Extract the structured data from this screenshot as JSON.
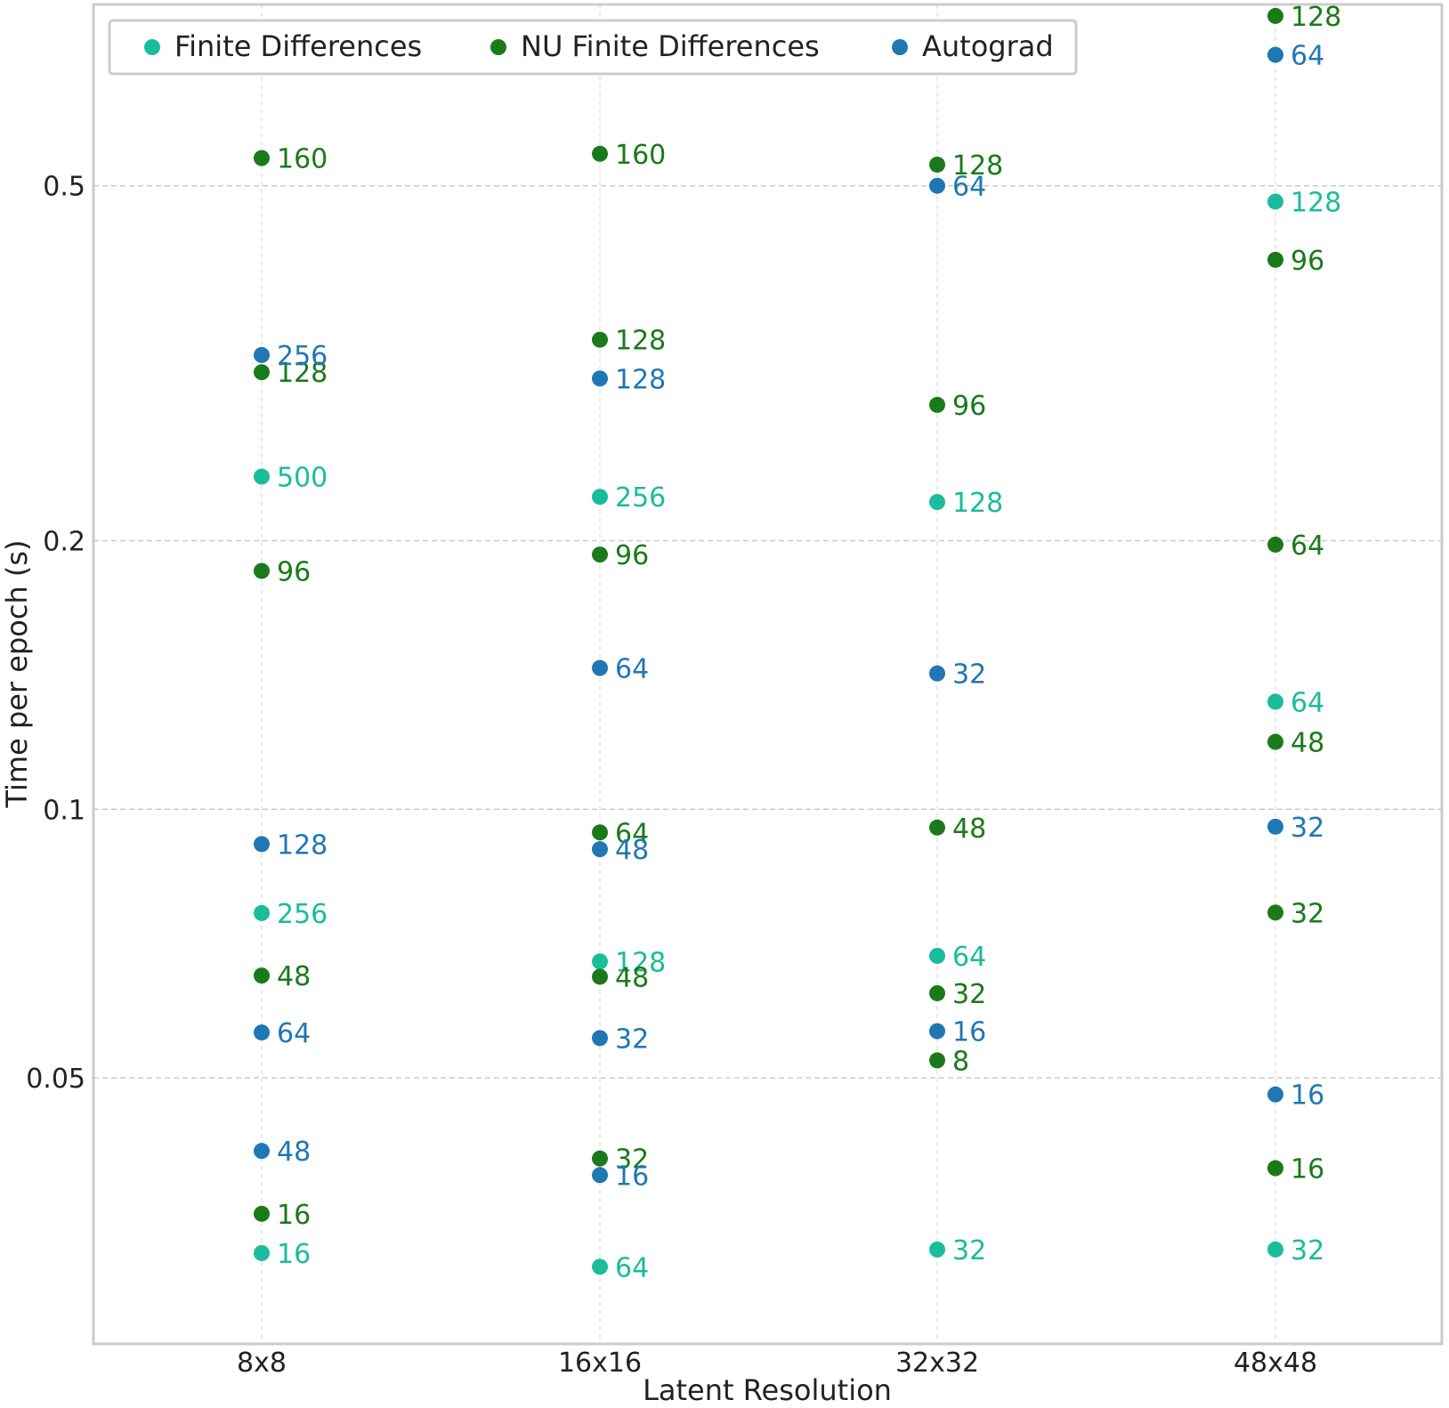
{
  "chart_data": {
    "type": "scatter",
    "title": "",
    "xlabel": "Latent Resolution",
    "ylabel": "Time per epoch (s)",
    "yscale": "log",
    "ylim": [
      0.0255,
      0.82
    ],
    "yticks": [
      0.05,
      0.1,
      0.2,
      0.5
    ],
    "ytick_labels": [
      "0.05",
      "0.1",
      "0.2",
      "0.5"
    ],
    "categories": [
      "8x8",
      "16x16",
      "32x32",
      "48x48"
    ],
    "grid": true,
    "legend_position": "top-left",
    "series": [
      {
        "name": "Finite Differences",
        "color": "#1abc9c",
        "points": [
          {
            "x": "8x8",
            "y": 0.236,
            "label": "500"
          },
          {
            "x": "8x8",
            "y": 0.0765,
            "label": "256"
          },
          {
            "x": "8x8",
            "y": 0.0318,
            "label": "16"
          },
          {
            "x": "16x16",
            "y": 0.224,
            "label": "256"
          },
          {
            "x": "16x16",
            "y": 0.0675,
            "label": "128"
          },
          {
            "x": "16x16",
            "y": 0.0307,
            "label": "64"
          },
          {
            "x": "32x32",
            "y": 0.221,
            "label": "128"
          },
          {
            "x": "32x32",
            "y": 0.0685,
            "label": "64"
          },
          {
            "x": "32x32",
            "y": 0.0321,
            "label": "32"
          },
          {
            "x": "48x48",
            "y": 0.48,
            "label": "128"
          },
          {
            "x": "48x48",
            "y": 0.132,
            "label": "64"
          },
          {
            "x": "48x48",
            "y": 0.0321,
            "label": "32"
          }
        ]
      },
      {
        "name": "NU Finite Differences",
        "color": "#1a7a1a",
        "points": [
          {
            "x": "8x8",
            "y": 0.537,
            "label": "160"
          },
          {
            "x": "8x8",
            "y": 0.309,
            "label": "128"
          },
          {
            "x": "8x8",
            "y": 0.185,
            "label": "96"
          },
          {
            "x": "8x8",
            "y": 0.0651,
            "label": "48"
          },
          {
            "x": "8x8",
            "y": 0.0352,
            "label": "16"
          },
          {
            "x": "16x16",
            "y": 0.543,
            "label": "160"
          },
          {
            "x": "16x16",
            "y": 0.336,
            "label": "128"
          },
          {
            "x": "16x16",
            "y": 0.193,
            "label": "96"
          },
          {
            "x": "16x16",
            "y": 0.0942,
            "label": "64"
          },
          {
            "x": "16x16",
            "y": 0.0649,
            "label": "48"
          },
          {
            "x": "16x16",
            "y": 0.0406,
            "label": "32"
          },
          {
            "x": "32x32",
            "y": 0.528,
            "label": "128"
          },
          {
            "x": "32x32",
            "y": 0.284,
            "label": "96"
          },
          {
            "x": "32x32",
            "y": 0.0954,
            "label": "48"
          },
          {
            "x": "32x32",
            "y": 0.0622,
            "label": "32"
          },
          {
            "x": "32x32",
            "y": 0.0523,
            "label": "8"
          },
          {
            "x": "48x48",
            "y": 0.775,
            "label": "128"
          },
          {
            "x": "48x48",
            "y": 0.413,
            "label": "96"
          },
          {
            "x": "48x48",
            "y": 0.198,
            "label": "64"
          },
          {
            "x": "48x48",
            "y": 0.119,
            "label": "48"
          },
          {
            "x": "48x48",
            "y": 0.0766,
            "label": "32"
          },
          {
            "x": "48x48",
            "y": 0.0396,
            "label": "16"
          }
        ]
      },
      {
        "name": "Autograd",
        "color": "#1f77b4",
        "points": [
          {
            "x": "8x8",
            "y": 0.323,
            "label": "256"
          },
          {
            "x": "8x8",
            "y": 0.0914,
            "label": "128"
          },
          {
            "x": "8x8",
            "y": 0.0562,
            "label": "64"
          },
          {
            "x": "8x8",
            "y": 0.0414,
            "label": "48"
          },
          {
            "x": "16x16",
            "y": 0.304,
            "label": "128"
          },
          {
            "x": "16x16",
            "y": 0.144,
            "label": "64"
          },
          {
            "x": "16x16",
            "y": 0.0902,
            "label": "48"
          },
          {
            "x": "16x16",
            "y": 0.0554,
            "label": "32"
          },
          {
            "x": "16x16",
            "y": 0.0389,
            "label": "16"
          },
          {
            "x": "32x32",
            "y": 0.5,
            "label": "64"
          },
          {
            "x": "32x32",
            "y": 0.142,
            "label": "32"
          },
          {
            "x": "32x32",
            "y": 0.0564,
            "label": "16"
          },
          {
            "x": "48x48",
            "y": 0.701,
            "label": "64"
          },
          {
            "x": "48x48",
            "y": 0.0956,
            "label": "32"
          },
          {
            "x": "48x48",
            "y": 0.0479,
            "label": "16"
          }
        ]
      }
    ]
  }
}
